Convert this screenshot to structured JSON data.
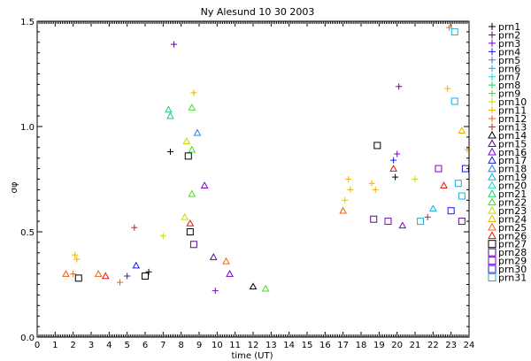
{
  "chart_data": {
    "type": "scatter",
    "title": "Ny Alesund  10 30 2003",
    "xlabel": "time (UT)",
    "ylabel": "σφ",
    "xlim": [
      0,
      24
    ],
    "ylim": [
      0,
      1.5
    ],
    "x_ticks": [
      "0",
      "1",
      "2",
      "3",
      "4",
      "5",
      "6",
      "7",
      "8",
      "9",
      "10",
      "11",
      "12",
      "13",
      "14",
      "15",
      "16",
      "17",
      "18",
      "19",
      "20",
      "21",
      "22",
      "23",
      "24"
    ],
    "y_ticks": [
      "0.0",
      "0.5",
      "1.0",
      "1.5"
    ],
    "legend_placement": "right",
    "series": [
      {
        "name": "prn1",
        "marker": "+",
        "color": "#000000"
      },
      {
        "name": "prn2",
        "marker": "+",
        "color": "#5a0a8a"
      },
      {
        "name": "prn3",
        "marker": "+",
        "color": "#7a00d0"
      },
      {
        "name": "prn4",
        "marker": "+",
        "color": "#1a1ae6"
      },
      {
        "name": "prn5",
        "marker": "+",
        "color": "#2a7af0"
      },
      {
        "name": "prn6",
        "marker": "+",
        "color": "#14b0e0"
      },
      {
        "name": "prn7",
        "marker": "+",
        "color": "#1ad4c8"
      },
      {
        "name": "prn8",
        "marker": "+",
        "color": "#1ad070"
      },
      {
        "name": "prn9",
        "marker": "+",
        "color": "#40e020"
      },
      {
        "name": "prn10",
        "marker": "+",
        "color": "#c8d800"
      },
      {
        "name": "prn11",
        "marker": "+",
        "color": "#f0b000"
      },
      {
        "name": "prn12",
        "marker": "+",
        "color": "#f06010"
      },
      {
        "name": "prn13",
        "marker": "+",
        "color": "#e81010"
      },
      {
        "name": "prn14",
        "marker": "△",
        "color": "#000000"
      },
      {
        "name": "prn15",
        "marker": "△",
        "color": "#5a0a8a"
      },
      {
        "name": "prn16",
        "marker": "△",
        "color": "#7a00d0"
      },
      {
        "name": "prn17",
        "marker": "△",
        "color": "#1a1ae6"
      },
      {
        "name": "prn18",
        "marker": "△",
        "color": "#2a7af0"
      },
      {
        "name": "prn19",
        "marker": "△",
        "color": "#14b0e0"
      },
      {
        "name": "prn20",
        "marker": "△",
        "color": "#1ad4c8"
      },
      {
        "name": "prn21",
        "marker": "△",
        "color": "#1ad070"
      },
      {
        "name": "prn22",
        "marker": "△",
        "color": "#40e020"
      },
      {
        "name": "prn23",
        "marker": "△",
        "color": "#c8d800"
      },
      {
        "name": "prn24",
        "marker": "△",
        "color": "#f0b000"
      },
      {
        "name": "prn25",
        "marker": "△",
        "color": "#f06010"
      },
      {
        "name": "prn26",
        "marker": "△",
        "color": "#e81010"
      },
      {
        "name": "prn27",
        "marker": "□",
        "color": "#000000"
      },
      {
        "name": "prn28",
        "marker": "□",
        "color": "#5a0a8a"
      },
      {
        "name": "prn29",
        "marker": "□",
        "color": "#7a00d0"
      },
      {
        "name": "prn30",
        "marker": "□",
        "color": "#1a1ae6"
      },
      {
        "name": "prn31",
        "marker": "□",
        "color": "#14b0e0"
      }
    ],
    "points": [
      {
        "s": 0,
        "x": 7.4,
        "y": 0.88
      },
      {
        "s": 1,
        "x": 7.6,
        "y": 1.39
      },
      {
        "s": 12,
        "x": 5.4,
        "y": 0.52
      },
      {
        "s": 20,
        "x": 7.3,
        "y": 1.08
      },
      {
        "s": 20,
        "x": 7.4,
        "y": 1.05
      },
      {
        "s": 21,
        "x": 8.6,
        "y": 1.09
      },
      {
        "s": 17,
        "x": 8.9,
        "y": 0.97
      },
      {
        "s": 26,
        "x": 8.4,
        "y": 0.86
      },
      {
        "s": 10,
        "x": 8.7,
        "y": 1.16
      },
      {
        "s": 22,
        "x": 8.3,
        "y": 0.93
      },
      {
        "s": 21,
        "x": 8.6,
        "y": 0.89
      },
      {
        "s": 9,
        "x": 7.0,
        "y": 0.48
      },
      {
        "s": 15,
        "x": 9.3,
        "y": 0.72
      },
      {
        "s": 21,
        "x": 8.6,
        "y": 0.68
      },
      {
        "s": 22,
        "x": 8.2,
        "y": 0.57
      },
      {
        "s": 25,
        "x": 8.5,
        "y": 0.54
      },
      {
        "s": 26,
        "x": 8.5,
        "y": 0.5
      },
      {
        "s": 27,
        "x": 8.7,
        "y": 0.44
      },
      {
        "s": 14,
        "x": 9.8,
        "y": 0.38
      },
      {
        "s": 24,
        "x": 10.5,
        "y": 0.36
      },
      {
        "s": 15,
        "x": 10.7,
        "y": 0.3
      },
      {
        "s": 2,
        "x": 9.9,
        "y": 0.22
      },
      {
        "s": 13,
        "x": 12.0,
        "y": 0.24
      },
      {
        "s": 21,
        "x": 12.7,
        "y": 0.23
      },
      {
        "s": 24,
        "x": 1.6,
        "y": 0.3
      },
      {
        "s": 10,
        "x": 2.1,
        "y": 0.39
      },
      {
        "s": 10,
        "x": 2.2,
        "y": 0.37
      },
      {
        "s": 11,
        "x": 2.0,
        "y": 0.3
      },
      {
        "s": 26,
        "x": 2.3,
        "y": 0.28
      },
      {
        "s": 24,
        "x": 3.4,
        "y": 0.3
      },
      {
        "s": 25,
        "x": 3.8,
        "y": 0.29
      },
      {
        "s": 11,
        "x": 4.6,
        "y": 0.26
      },
      {
        "s": 1,
        "x": 5.0,
        "y": 0.29
      },
      {
        "s": 16,
        "x": 5.5,
        "y": 0.34
      },
      {
        "s": 0,
        "x": 6.2,
        "y": 0.31
      },
      {
        "s": 26,
        "x": 6.0,
        "y": 0.29
      },
      {
        "s": 1,
        "x": 20.1,
        "y": 1.19
      },
      {
        "s": 3,
        "x": 19.8,
        "y": 0.84
      },
      {
        "s": 26,
        "x": 18.9,
        "y": 0.91
      },
      {
        "s": 2,
        "x": 20.0,
        "y": 0.87
      },
      {
        "s": 0,
        "x": 19.9,
        "y": 0.76
      },
      {
        "s": 25,
        "x": 19.8,
        "y": 0.8
      },
      {
        "s": 9,
        "x": 21.0,
        "y": 0.75
      },
      {
        "s": 10,
        "x": 17.3,
        "y": 0.75
      },
      {
        "s": 10,
        "x": 17.4,
        "y": 0.7
      },
      {
        "s": 9,
        "x": 17.1,
        "y": 0.65
      },
      {
        "s": 24,
        "x": 17.0,
        "y": 0.6
      },
      {
        "s": 10,
        "x": 18.6,
        "y": 0.73
      },
      {
        "s": 10,
        "x": 18.8,
        "y": 0.7
      },
      {
        "s": 11,
        "x": 22.9,
        "y": 1.47
      },
      {
        "s": 30,
        "x": 23.2,
        "y": 1.45
      },
      {
        "s": 10,
        "x": 22.8,
        "y": 1.18
      },
      {
        "s": 30,
        "x": 23.2,
        "y": 1.12
      },
      {
        "s": 23,
        "x": 23.6,
        "y": 0.98
      },
      {
        "s": 10,
        "x": 23.9,
        "y": 0.89
      },
      {
        "s": 29,
        "x": 23.8,
        "y": 0.8
      },
      {
        "s": 28,
        "x": 22.3,
        "y": 0.8
      },
      {
        "s": 25,
        "x": 22.6,
        "y": 0.72
      },
      {
        "s": 30,
        "x": 23.4,
        "y": 0.73
      },
      {
        "s": 30,
        "x": 23.6,
        "y": 0.67
      },
      {
        "s": 18,
        "x": 22.0,
        "y": 0.61
      },
      {
        "s": 12,
        "x": 21.7,
        "y": 0.57
      },
      {
        "s": 29,
        "x": 23.0,
        "y": 0.6
      },
      {
        "s": 27,
        "x": 18.7,
        "y": 0.56
      },
      {
        "s": 28,
        "x": 19.5,
        "y": 0.55
      },
      {
        "s": 15,
        "x": 20.3,
        "y": 0.53
      },
      {
        "s": 30,
        "x": 21.3,
        "y": 0.55
      },
      {
        "s": 27,
        "x": 23.6,
        "y": 0.55
      }
    ]
  }
}
